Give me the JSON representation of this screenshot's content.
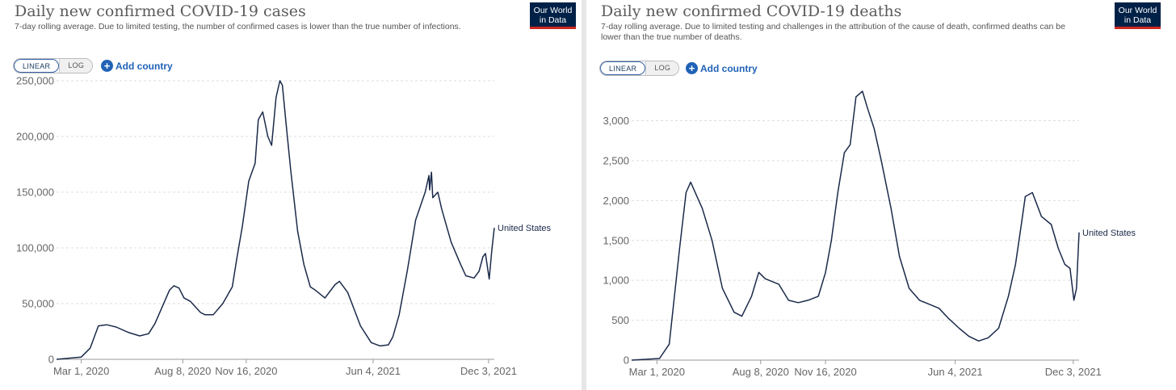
{
  "brand": {
    "logo_line1": "Our World",
    "logo_line2": "in Data",
    "logo_bg": "#002147",
    "logo_stripe": "#ce261e"
  },
  "controls": {
    "linear": "LINEAR",
    "log": "LOG",
    "add_country": "Add country"
  },
  "chart_data": [
    {
      "type": "line",
      "title": "Daily new confirmed COVID-19 cases",
      "subtitle": "7-day rolling average. Due to limited testing, the number of confirmed cases is lower than the true number of infections.",
      "x_ticks": [
        "Mar 1, 2020",
        "Aug 8, 2020",
        "Nov 16, 2020",
        "Jun 4, 2021",
        "Dec 3, 2021"
      ],
      "xlim": [
        "2020-01-22",
        "2021-12-12"
      ],
      "y_ticks": [
        "0",
        "50,000",
        "100,000",
        "150,000",
        "200,000",
        "250,000"
      ],
      "ylim": [
        0,
        250000
      ],
      "grid": true,
      "series": [
        {
          "name": "United States",
          "color": "#1b2a4a",
          "x": [
            "2020-01-22",
            "2020-03-01",
            "2020-03-15",
            "2020-03-28",
            "2020-04-10",
            "2020-04-25",
            "2020-05-15",
            "2020-06-01",
            "2020-06-15",
            "2020-06-25",
            "2020-07-05",
            "2020-07-18",
            "2020-07-25",
            "2020-08-02",
            "2020-08-10",
            "2020-08-20",
            "2020-09-05",
            "2020-09-12",
            "2020-09-25",
            "2020-10-10",
            "2020-10-25",
            "2020-11-01",
            "2020-11-10",
            "2020-11-20",
            "2020-11-30",
            "2020-12-05",
            "2020-12-12",
            "2020-12-20",
            "2020-12-26",
            "2021-01-02",
            "2021-01-08",
            "2021-01-12",
            "2021-01-18",
            "2021-01-25",
            "2021-02-05",
            "2021-02-15",
            "2021-02-25",
            "2021-03-05",
            "2021-03-20",
            "2021-04-05",
            "2021-04-12",
            "2021-04-25",
            "2021-05-15",
            "2021-06-01",
            "2021-06-15",
            "2021-06-28",
            "2021-07-05",
            "2021-07-15",
            "2021-07-28",
            "2021-08-10",
            "2021-08-25",
            "2021-08-31",
            "2021-09-01",
            "2021-09-04",
            "2021-09-06",
            "2021-09-14",
            "2021-09-20",
            "2021-10-05",
            "2021-10-20",
            "2021-10-28",
            "2021-11-10",
            "2021-11-18",
            "2021-11-24",
            "2021-11-28",
            "2021-12-04",
            "2021-12-08",
            "2021-12-12"
          ],
          "y": [
            0,
            2000,
            10000,
            30000,
            31000,
            29000,
            24000,
            21000,
            23000,
            32000,
            45000,
            62000,
            66000,
            64000,
            55000,
            52000,
            42000,
            40000,
            40000,
            50000,
            65000,
            90000,
            120000,
            160000,
            176000,
            215000,
            222000,
            200000,
            192000,
            235000,
            250000,
            246000,
            210000,
            170000,
            115000,
            85000,
            65000,
            62000,
            55000,
            67000,
            70000,
            60000,
            30000,
            15000,
            12000,
            13000,
            20000,
            40000,
            80000,
            125000,
            150000,
            165000,
            152000,
            168000,
            145000,
            150000,
            135000,
            105000,
            85000,
            75000,
            73000,
            79000,
            92000,
            95000,
            72000,
            98000,
            118000
          ]
        }
      ],
      "end_label": "United States"
    },
    {
      "type": "line",
      "title": "Daily new confirmed COVID-19 deaths",
      "subtitle": "7-day rolling average. Due to limited testing and challenges in the attribution of the cause of death, confirmed deaths can be lower than the true number of deaths.",
      "x_ticks": [
        "Mar 1, 2020",
        "Aug 8, 2020",
        "Nov 16, 2020",
        "Jun 4, 2021",
        "Dec 3, 2021"
      ],
      "xlim": [
        "2020-01-22",
        "2021-12-12"
      ],
      "y_ticks": [
        "0",
        "500",
        "1,000",
        "1,500",
        "2,000",
        "2,500",
        "3,000"
      ],
      "ylim": [
        0,
        3400
      ],
      "grid": true,
      "series": [
        {
          "name": "United States",
          "color": "#1b2a4a",
          "x": [
            "2020-01-22",
            "2020-03-05",
            "2020-03-20",
            "2020-04-05",
            "2020-04-15",
            "2020-04-22",
            "2020-05-10",
            "2020-05-25",
            "2020-06-10",
            "2020-06-28",
            "2020-07-10",
            "2020-07-25",
            "2020-08-05",
            "2020-08-15",
            "2020-09-05",
            "2020-09-20",
            "2020-10-05",
            "2020-10-20",
            "2020-11-05",
            "2020-11-16",
            "2020-11-25",
            "2020-12-05",
            "2020-12-15",
            "2020-12-24",
            "2021-01-02",
            "2021-01-12",
            "2021-01-20",
            "2021-01-30",
            "2021-02-10",
            "2021-02-25",
            "2021-03-10",
            "2021-03-25",
            "2021-04-10",
            "2021-04-25",
            "2021-05-10",
            "2021-05-25",
            "2021-06-10",
            "2021-06-25",
            "2021-07-10",
            "2021-07-25",
            "2021-08-10",
            "2021-08-25",
            "2021-09-05",
            "2021-09-14",
            "2021-09-20",
            "2021-10-01",
            "2021-10-15",
            "2021-10-30",
            "2021-11-10",
            "2021-11-20",
            "2021-11-28",
            "2021-12-04",
            "2021-12-08",
            "2021-12-12"
          ],
          "y": [
            0,
            20,
            200,
            1400,
            2100,
            2230,
            1900,
            1500,
            900,
            600,
            550,
            800,
            1100,
            1020,
            950,
            750,
            720,
            750,
            800,
            1100,
            1500,
            2100,
            2600,
            2700,
            3300,
            3370,
            3150,
            2900,
            2500,
            1900,
            1300,
            900,
            750,
            700,
            650,
            520,
            400,
            300,
            240,
            280,
            400,
            800,
            1200,
            1700,
            2050,
            2100,
            1800,
            1700,
            1400,
            1200,
            1150,
            750,
            900,
            1600
          ]
        }
      ],
      "end_label": "United States"
    }
  ]
}
